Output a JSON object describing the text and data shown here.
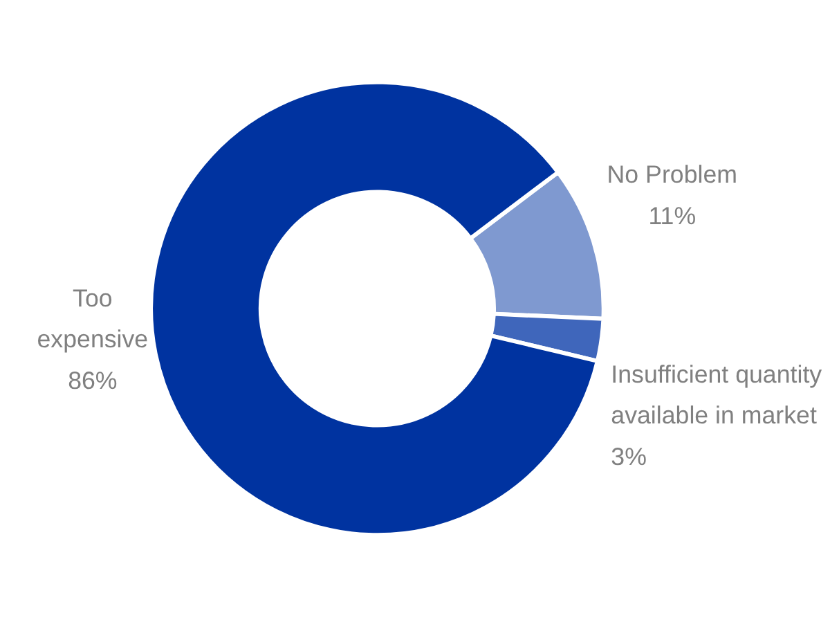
{
  "chart_data": {
    "type": "donut",
    "categories": [
      "No Problem",
      "Insufficient quantity available in market",
      "Too expensive"
    ],
    "values": [
      11,
      3,
      86
    ],
    "colors": [
      "#7f99d0",
      "#3f66bb",
      "#0033a0"
    ],
    "value_labels": [
      "11%",
      "3%",
      "86%"
    ],
    "legend": false
  }
}
